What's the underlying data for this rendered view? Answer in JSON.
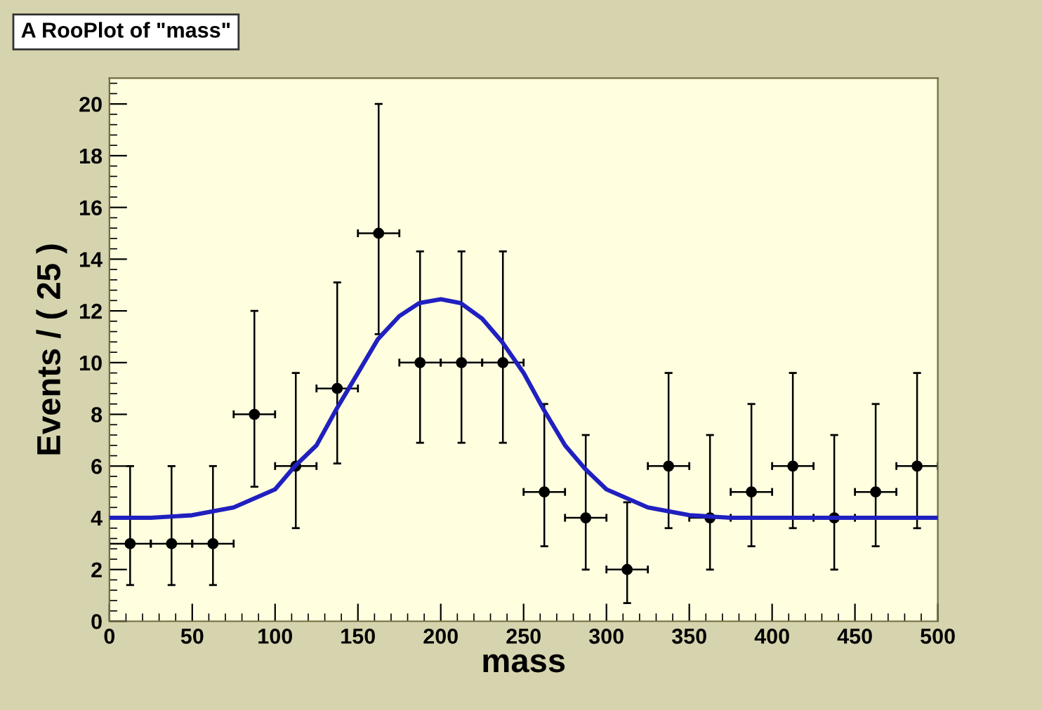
{
  "chart_data": {
    "type": "scatter",
    "title": "A RooPlot of \"mass\"",
    "xlabel": "mass",
    "ylabel": "Events / ( 25 )",
    "x": [
      12.5,
      37.5,
      62.5,
      87.5,
      112.5,
      137.5,
      162.5,
      187.5,
      212.5,
      237.5,
      262.5,
      287.5,
      312.5,
      337.5,
      362.5,
      387.5,
      412.5,
      437.5,
      462.5,
      487.5
    ],
    "series": [
      {
        "color": "#000000",
        "marker": "circle",
        "values": [
          3,
          3,
          3,
          8,
          6,
          9,
          15,
          10,
          10,
          10,
          5,
          4,
          2,
          6,
          4,
          5,
          6,
          4,
          5,
          6
        ],
        "errors": [
          [
            1.4,
            6.0
          ],
          [
            1.4,
            6.0
          ],
          [
            1.4,
            6.0
          ],
          [
            5.2,
            12.0
          ],
          [
            3.6,
            9.6
          ],
          [
            6.1,
            13.1
          ],
          [
            11.1,
            20.0
          ],
          [
            6.9,
            14.3
          ],
          [
            6.9,
            14.3
          ],
          [
            6.9,
            14.3
          ],
          [
            2.9,
            8.4
          ],
          [
            2.0,
            7.2
          ],
          [
            0.7,
            4.6
          ],
          [
            3.6,
            9.6
          ],
          [
            2.0,
            7.2
          ],
          [
            2.9,
            8.4
          ],
          [
            3.6,
            9.6
          ],
          [
            2.0,
            7.2
          ],
          [
            2.9,
            8.4
          ],
          [
            3.6,
            9.6
          ]
        ],
        "xerrors": [
          12.5,
          12.5,
          12.5,
          12.5,
          12.5,
          12.5,
          12.5,
          12.5,
          12.5,
          12.5,
          12.5,
          12.5,
          12.5,
          12.5,
          12.5,
          12.5,
          12.5,
          12.5,
          12.5,
          12.5
        ]
      },
      {
        "type": "line",
        "color": "#2020c0",
        "line_style": "solid",
        "marker": "none",
        "x": [
          0,
          25,
          50,
          75,
          100,
          112,
          125,
          137,
          150,
          162,
          175,
          187,
          200,
          212,
          225,
          237,
          250,
          262,
          275,
          287,
          300,
          325,
          350,
          375,
          400,
          450,
          500
        ],
        "values": [
          4.0,
          4.0,
          4.1,
          4.4,
          5.1,
          6.0,
          6.8,
          8.2,
          9.6,
          10.9,
          11.8,
          12.3,
          12.45,
          12.3,
          11.7,
          10.8,
          9.6,
          8.2,
          6.8,
          5.9,
          5.1,
          4.4,
          4.1,
          4.0,
          4.0,
          4.0,
          4.0
        ]
      }
    ],
    "xlim": [
      0,
      500
    ],
    "xticks": [
      0,
      50,
      100,
      150,
      200,
      250,
      300,
      350,
      400,
      450,
      500
    ],
    "ylim": [
      0,
      21
    ],
    "yticks": [
      0,
      2,
      4,
      6,
      8,
      10,
      12,
      14,
      16,
      18,
      20
    ],
    "grid": false,
    "legend": false
  }
}
